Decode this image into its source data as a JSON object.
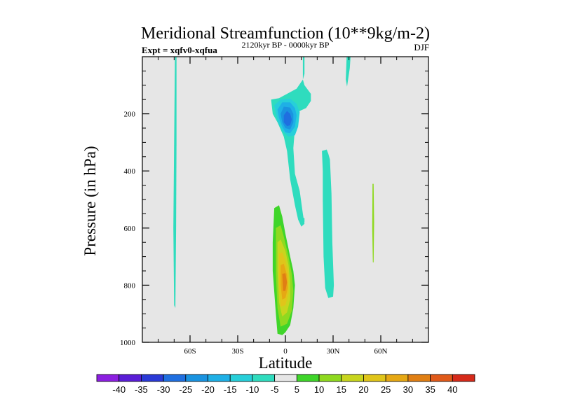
{
  "chart_data": {
    "type": "contour",
    "title": "Meridional Streamfunction (10**9kg/m-2)",
    "experiment_label": "Expt = xqfv0-xqfua",
    "time_label": "2120kyr BP - 0000kyr BP",
    "season_label": "DJF",
    "xlabel": "Latitude",
    "ylabel": "Pressure (in hPa)",
    "xlim": [
      -90,
      90
    ],
    "ylim": [
      1000,
      0
    ],
    "background_color": "#e6e6e6",
    "x_ticks": [
      {
        "value": -60,
        "label": "60S"
      },
      {
        "value": -30,
        "label": "30S"
      },
      {
        "value": 0,
        "label": "0"
      },
      {
        "value": 30,
        "label": "30N"
      },
      {
        "value": 60,
        "label": "60N"
      }
    ],
    "y_ticks": [
      {
        "value": 200,
        "label": "200"
      },
      {
        "value": 400,
        "label": "400"
      },
      {
        "value": 600,
        "label": "600"
      },
      {
        "value": 800,
        "label": "800"
      },
      {
        "value": 1000,
        "label": "1000"
      }
    ],
    "contour_levels": [
      "-40",
      "-35",
      "-30",
      "-25",
      "-20",
      "-15",
      "-10",
      "-5",
      "5",
      "10",
      "15",
      "20",
      "25",
      "30",
      "35",
      "40"
    ],
    "colorbar_colors": [
      "#8c1fe0",
      "#5a1ed6",
      "#2a3ad6",
      "#1f6fe0",
      "#1a93e0",
      "#1fb0e6",
      "#27cfd9",
      "#2fdcbe",
      "#e6e6e6",
      "#3fd52a",
      "#8fd920",
      "#c8d51e",
      "#e0c51a",
      "#e6a814",
      "#e07f14",
      "#e05a1a",
      "#d62a1a"
    ],
    "regions": [
      {
        "level": "-10",
        "color": "#2fdcbe",
        "points": [
          [
            -69.5,
            0
          ],
          [
            -68.5,
            0
          ],
          [
            -68.5,
            300
          ],
          [
            -68.8,
            600
          ],
          [
            -69.2,
            880
          ],
          [
            -70,
            870
          ],
          [
            -70.5,
            600
          ],
          [
            -70,
            300
          ]
        ]
      },
      {
        "level": "-10",
        "color": "#2fdcbe",
        "points": [
          [
            -9,
            150
          ],
          [
            -4,
            145
          ],
          [
            7,
            112
          ],
          [
            11,
            80
          ],
          [
            12,
            100
          ],
          [
            16,
            130
          ],
          [
            16,
            155
          ],
          [
            13,
            180
          ],
          [
            9,
            190
          ],
          [
            6,
            250
          ],
          [
            5,
            320
          ],
          [
            6,
            410
          ],
          [
            9,
            470
          ],
          [
            11,
            550
          ],
          [
            12,
            585
          ],
          [
            10,
            595
          ],
          [
            8,
            570
          ],
          [
            6,
            520
          ],
          [
            3,
            430
          ],
          [
            1,
            330
          ],
          [
            -1,
            280
          ],
          [
            -5,
            230
          ],
          [
            -8,
            200
          ]
        ]
      },
      {
        "level": "-15",
        "color": "#27cfd9",
        "points": [
          [
            -7,
            170
          ],
          [
            -3,
            150
          ],
          [
            3,
            147
          ],
          [
            7,
            165
          ],
          [
            9,
            195
          ],
          [
            8,
            245
          ],
          [
            6,
            275
          ],
          [
            2,
            280
          ],
          [
            -2,
            260
          ],
          [
            -5,
            225
          ]
        ]
      },
      {
        "level": "-20",
        "color": "#1fb0e6",
        "points": [
          [
            -5,
            185
          ],
          [
            -2,
            160
          ],
          [
            3,
            160
          ],
          [
            6,
            180
          ],
          [
            7,
            205
          ],
          [
            6,
            245
          ],
          [
            3,
            268
          ],
          [
            0,
            265
          ],
          [
            -2,
            245
          ],
          [
            -4,
            215
          ]
        ]
      },
      {
        "level": "-25",
        "color": "#1a93e0",
        "points": [
          [
            -3,
            200
          ],
          [
            -1,
            175
          ],
          [
            3,
            178
          ],
          [
            5,
            200
          ],
          [
            5,
            230
          ],
          [
            3,
            255
          ],
          [
            0,
            250
          ],
          [
            -2,
            230
          ]
        ]
      },
      {
        "level": "-30",
        "color": "#1f6fe0",
        "points": [
          [
            -1,
            205
          ],
          [
            1,
            190
          ],
          [
            3,
            200
          ],
          [
            4,
            220
          ],
          [
            3,
            240
          ],
          [
            1,
            243
          ],
          [
            -1,
            230
          ]
        ]
      },
      {
        "level": "-10",
        "color": "#2fdcbe",
        "points": [
          [
            11,
            0
          ],
          [
            12,
            0
          ],
          [
            12,
            60
          ],
          [
            11,
            80
          ]
        ]
      },
      {
        "level": "-10",
        "color": "#2fdcbe",
        "points": [
          [
            11,
            565
          ],
          [
            12,
            565
          ],
          [
            12,
            580
          ],
          [
            11,
            580
          ]
        ]
      },
      {
        "level": "-10",
        "color": "#2fdcbe",
        "points": [
          [
            23,
            330
          ],
          [
            26,
            325
          ],
          [
            27,
            340
          ],
          [
            28,
            360
          ],
          [
            29,
            480
          ],
          [
            29.5,
            650
          ],
          [
            30.5,
            800
          ],
          [
            30,
            840
          ],
          [
            27,
            845
          ],
          [
            25,
            810
          ],
          [
            24,
            700
          ],
          [
            23.5,
            500
          ],
          [
            23.5,
            400
          ]
        ]
      },
      {
        "level": "-10",
        "color": "#2fdcbe",
        "points": [
          [
            38.5,
            0
          ],
          [
            41,
            0
          ],
          [
            40.5,
            40
          ],
          [
            38.8,
            105
          ],
          [
            38,
            80
          ]
        ]
      },
      {
        "level": "10",
        "color": "#8fd920",
        "points": [
          [
            54.8,
            445
          ],
          [
            55.5,
            445
          ],
          [
            55.8,
            580
          ],
          [
            55.5,
            720
          ],
          [
            55,
            720
          ],
          [
            54.6,
            600
          ]
        ]
      },
      {
        "level": "5",
        "color": "#3fd52a",
        "points": [
          [
            -7,
            530
          ],
          [
            -4,
            520
          ],
          [
            -2,
            560
          ],
          [
            0,
            620
          ],
          [
            3,
            700
          ],
          [
            5,
            750
          ],
          [
            6,
            800
          ],
          [
            5,
            880
          ],
          [
            3,
            940
          ],
          [
            0,
            965
          ],
          [
            -2,
            975
          ],
          [
            -5,
            970
          ],
          [
            -6,
            900
          ],
          [
            -8,
            750
          ],
          [
            -8,
            650
          ]
        ]
      },
      {
        "level": "10",
        "color": "#8fd920",
        "points": [
          [
            -6,
            600
          ],
          [
            -3,
            590
          ],
          [
            -1,
            630
          ],
          [
            2,
            700
          ],
          [
            4,
            760
          ],
          [
            5,
            820
          ],
          [
            4,
            890
          ],
          [
            1,
            935
          ],
          [
            -3,
            945
          ],
          [
            -5,
            880
          ],
          [
            -6,
            760
          ]
        ]
      },
      {
        "level": "15",
        "color": "#c8d51e",
        "points": [
          [
            -5,
            650
          ],
          [
            -3,
            640
          ],
          [
            0,
            680
          ],
          [
            2,
            730
          ],
          [
            3,
            790
          ],
          [
            3,
            850
          ],
          [
            1,
            895
          ],
          [
            -2,
            910
          ],
          [
            -4,
            860
          ],
          [
            -5,
            750
          ]
        ]
      },
      {
        "level": "20",
        "color": "#e0c51a",
        "points": [
          [
            -4,
            690
          ],
          [
            -2,
            685
          ],
          [
            0,
            715
          ],
          [
            2,
            760
          ],
          [
            2,
            830
          ],
          [
            0,
            870
          ],
          [
            -3,
            875
          ],
          [
            -4,
            800
          ]
        ]
      },
      {
        "level": "25",
        "color": "#e6a814",
        "points": [
          [
            -3,
            730
          ],
          [
            -1,
            725
          ],
          [
            1,
            765
          ],
          [
            1.5,
            810
          ],
          [
            0,
            845
          ],
          [
            -2,
            850
          ],
          [
            -3,
            800
          ]
        ]
      },
      {
        "level": "30",
        "color": "#e07f14",
        "points": [
          [
            -2,
            760
          ],
          [
            0,
            758
          ],
          [
            1,
            790
          ],
          [
            0,
            820
          ],
          [
            -1.5,
            820
          ]
        ]
      }
    ]
  }
}
